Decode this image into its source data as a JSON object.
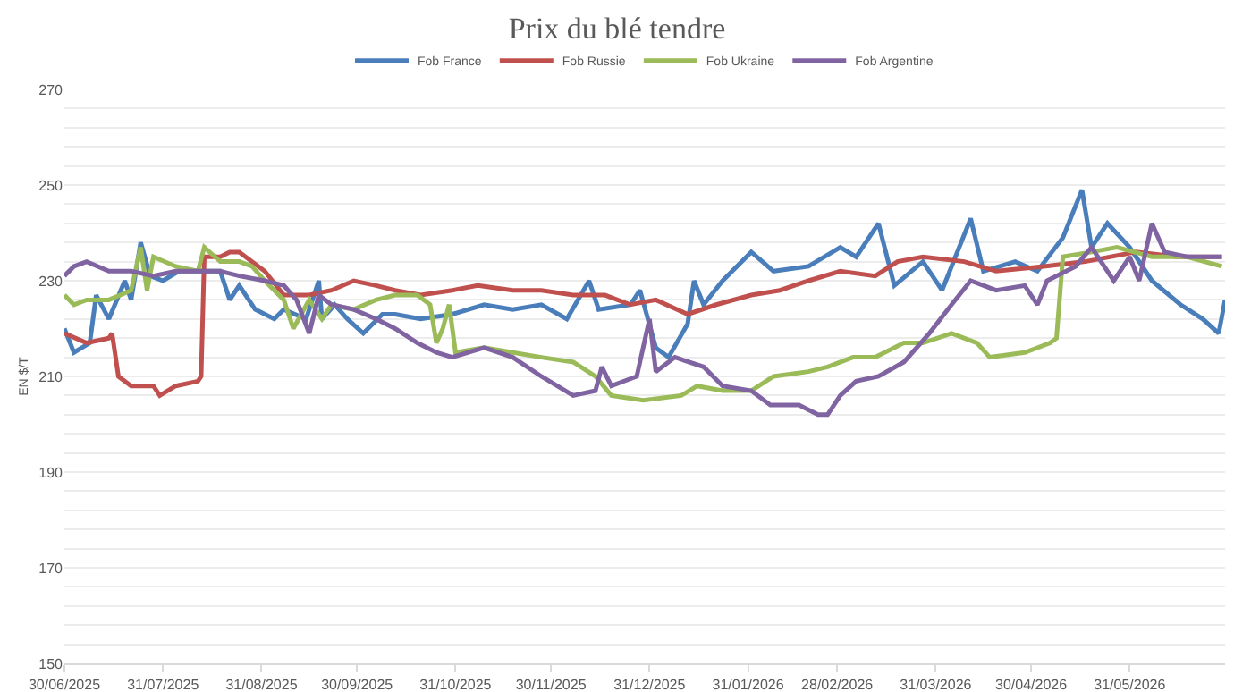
{
  "chart_data": {
    "type": "line",
    "title": "Prix du blé tendre",
    "ylabel": "EN $/T",
    "legend": "top",
    "grid": "y",
    "line_style": "solid",
    "xlim": [
      "2025-06-30",
      "2026-06-30"
    ],
    "xticks": [
      {
        "value": "2025-06-30",
        "label": "30/06/2025"
      },
      {
        "value": "2025-07-31",
        "label": "31/07/2025"
      },
      {
        "value": "2025-08-31",
        "label": "31/08/2025"
      },
      {
        "value": "2025-09-30",
        "label": "30/09/2025"
      },
      {
        "value": "2025-10-31",
        "label": "31/10/2025"
      },
      {
        "value": "2025-11-30",
        "label": "30/11/2025"
      },
      {
        "value": "2025-12-31",
        "label": "31/12/2025"
      },
      {
        "value": "2026-01-31",
        "label": "31/01/2026"
      },
      {
        "value": "2026-02-28",
        "label": "28/02/2026"
      },
      {
        "value": "2026-03-31",
        "label": "31/03/2026"
      },
      {
        "value": "2026-04-30",
        "label": "30/04/2026"
      },
      {
        "value": "2026-05-31",
        "label": "31/05/2026"
      }
    ],
    "ylim": [
      150,
      270
    ],
    "yticks": [
      150,
      {
        "value": 154,
        "label": null
      },
      {
        "value": 158,
        "label": null
      },
      {
        "value": 162,
        "label": null
      },
      {
        "value": 166,
        "label": null
      },
      170,
      {
        "value": 174,
        "label": null
      },
      {
        "value": 178,
        "label": null
      },
      {
        "value": 182,
        "label": null
      },
      {
        "value": 186,
        "label": null
      },
      190,
      {
        "value": 194,
        "label": null
      },
      {
        "value": 198,
        "label": null
      },
      {
        "value": 202,
        "label": null
      },
      {
        "value": 206,
        "label": null
      },
      210,
      {
        "value": 214,
        "label": null
      },
      {
        "value": 218,
        "label": null
      },
      {
        "value": 222,
        "label": null
      },
      {
        "value": 226,
        "label": null
      },
      230,
      {
        "value": 234,
        "label": null
      },
      {
        "value": 238,
        "label": null
      },
      {
        "value": 242,
        "label": null
      },
      {
        "value": 246,
        "label": null
      },
      250,
      {
        "value": 254,
        "label": null
      },
      {
        "value": 258,
        "label": null
      },
      {
        "value": 262,
        "label": null
      },
      {
        "value": 266,
        "label": null
      },
      270
    ],
    "series": [
      {
        "name": "Fob France",
        "color": "#4a7ebb",
        "x": [
          "2025-06-30",
          "2025-07-03",
          "2025-07-08",
          "2025-07-10",
          "2025-07-14",
          "2025-07-19",
          "2025-07-21",
          "2025-07-24",
          "2025-07-27",
          "2025-07-31",
          "2025-08-05",
          "2025-08-11",
          "2025-08-18",
          "2025-08-21",
          "2025-08-24",
          "2025-08-29",
          "2025-09-04",
          "2025-09-07",
          "2025-09-14",
          "2025-09-18",
          "2025-09-19",
          "2025-09-23",
          "2025-09-27",
          "2025-10-02",
          "2025-10-08",
          "2025-10-12",
          "2025-10-20",
          "2025-10-30",
          "2025-11-09",
          "2025-11-18",
          "2025-11-27",
          "2025-12-05",
          "2025-12-12",
          "2025-12-15",
          "2025-12-25",
          "2025-12-28",
          "2026-01-02",
          "2026-01-06",
          "2026-01-12",
          "2026-01-14",
          "2026-01-17",
          "2026-01-23",
          "2026-02-01",
          "2026-02-08",
          "2026-02-19",
          "2026-03-01",
          "2026-03-06",
          "2026-03-13",
          "2026-03-18",
          "2026-03-27",
          "2026-04-02",
          "2026-04-11",
          "2026-04-15",
          "2026-04-25",
          "2026-05-02",
          "2026-05-10",
          "2026-05-16",
          "2026-05-19",
          "2026-05-24",
          "2026-05-31",
          "2026-06-07",
          "2026-06-16",
          "2026-06-23",
          "2026-06-28",
          "2026-06-30"
        ],
        "values": [
          220,
          215,
          217,
          227,
          222,
          230,
          226,
          238,
          231,
          230,
          232,
          232,
          232,
          226,
          229,
          224,
          222,
          224,
          222,
          230,
          222,
          225,
          222,
          219,
          223,
          223,
          222,
          223,
          225,
          224,
          225,
          222,
          230,
          224,
          225,
          228,
          216,
          214,
          221,
          230,
          225,
          230,
          236,
          232,
          233,
          237,
          235,
          242,
          229,
          234,
          228,
          243,
          232,
          234,
          232,
          239,
          249,
          237,
          242,
          237,
          230,
          225,
          222,
          219,
          226
        ]
      },
      {
        "name": "Fob Russie",
        "color": "#c0504d",
        "x": [
          "2025-06-30",
          "2025-07-07",
          "2025-07-14",
          "2025-07-15",
          "2025-07-17",
          "2025-07-21",
          "2025-07-28",
          "2025-07-30",
          "2025-08-04",
          "2025-08-11",
          "2025-08-12",
          "2025-08-13",
          "2025-08-18",
          "2025-08-21",
          "2025-08-24",
          "2025-09-01",
          "2025-09-07",
          "2025-09-15",
          "2025-09-22",
          "2025-09-29",
          "2025-10-06",
          "2025-10-12",
          "2025-10-20",
          "2025-10-30",
          "2025-11-07",
          "2025-11-18",
          "2025-11-27",
          "2025-12-07",
          "2025-12-17",
          "2025-12-25",
          "2026-01-02",
          "2026-01-12",
          "2026-01-21",
          "2026-02-01",
          "2026-02-10",
          "2026-02-19",
          "2026-03-01",
          "2026-03-12",
          "2026-03-19",
          "2026-03-27",
          "2026-04-09",
          "2026-04-19",
          "2026-05-04",
          "2026-05-17",
          "2026-06-02",
          "2026-06-15",
          "2026-06-29"
        ],
        "values": [
          219,
          217,
          218,
          219,
          210,
          208,
          208,
          206,
          208,
          209,
          210,
          235,
          235,
          236,
          236,
          232,
          227,
          227,
          228,
          230,
          229,
          228,
          227,
          228,
          229,
          228,
          228,
          227,
          227,
          225,
          226,
          223,
          225,
          227,
          228,
          230,
          232,
          231,
          234,
          235,
          234,
          232,
          233,
          234,
          236,
          235,
          235
        ]
      },
      {
        "name": "Fob Ukraine",
        "color": "#9bbb59",
        "x": [
          "2025-06-30",
          "2025-07-03",
          "2025-07-07",
          "2025-07-14",
          "2025-07-21",
          "2025-07-24",
          "2025-07-26",
          "2025-07-28",
          "2025-08-04",
          "2025-08-11",
          "2025-08-13",
          "2025-08-18",
          "2025-08-24",
          "2025-08-28",
          "2025-09-01",
          "2025-09-07",
          "2025-09-10",
          "2025-09-15",
          "2025-09-19",
          "2025-09-22",
          "2025-09-29",
          "2025-10-06",
          "2025-10-12",
          "2025-10-19",
          "2025-10-23",
          "2025-10-25",
          "2025-10-27",
          "2025-10-29",
          "2025-10-31",
          "2025-11-09",
          "2025-11-18",
          "2025-11-27",
          "2025-12-07",
          "2025-12-14",
          "2025-12-19",
          "2025-12-29",
          "2026-01-10",
          "2026-01-15",
          "2026-01-23",
          "2026-02-01",
          "2026-02-08",
          "2026-02-19",
          "2026-02-25",
          "2026-03-05",
          "2026-03-12",
          "2026-03-21",
          "2026-03-27",
          "2026-04-05",
          "2026-04-13",
          "2026-04-17",
          "2026-04-28",
          "2026-05-06",
          "2026-05-08",
          "2026-05-10",
          "2026-05-19",
          "2026-05-27",
          "2026-06-07",
          "2026-06-18",
          "2026-06-29"
        ],
        "values": [
          227,
          225,
          226,
          226,
          228,
          237,
          228,
          235,
          233,
          232,
          237,
          234,
          234,
          233,
          230,
          226,
          220,
          226,
          222,
          225,
          224,
          226,
          227,
          227,
          225,
          217,
          220,
          225,
          215,
          216,
          215,
          214,
          213,
          210,
          206,
          205,
          206,
          208,
          207,
          207,
          210,
          211,
          212,
          214,
          214,
          217,
          217,
          219,
          217,
          214,
          215,
          217,
          218,
          235,
          236,
          237,
          235,
          235,
          233
        ]
      },
      {
        "name": "Fob Argentine",
        "color": "#8064a2",
        "x": [
          "2025-06-30",
          "2025-07-03",
          "2025-07-07",
          "2025-07-14",
          "2025-07-21",
          "2025-07-28",
          "2025-08-04",
          "2025-08-11",
          "2025-08-18",
          "2025-08-24",
          "2025-09-01",
          "2025-09-07",
          "2025-09-11",
          "2025-09-15",
          "2025-09-18",
          "2025-09-22",
          "2025-09-29",
          "2025-10-06",
          "2025-10-12",
          "2025-10-19",
          "2025-10-25",
          "2025-10-30",
          "2025-11-09",
          "2025-11-18",
          "2025-11-27",
          "2025-12-07",
          "2025-12-14",
          "2025-12-16",
          "2025-12-19",
          "2025-12-27",
          "2025-12-31",
          "2026-01-02",
          "2026-01-08",
          "2026-01-17",
          "2026-01-23",
          "2026-02-01",
          "2026-02-07",
          "2026-02-16",
          "2026-02-22",
          "2026-02-25",
          "2026-03-01",
          "2026-03-06",
          "2026-03-13",
          "2026-03-21",
          "2026-03-29",
          "2026-04-05",
          "2026-04-11",
          "2026-04-19",
          "2026-04-28",
          "2026-05-02",
          "2026-05-05",
          "2026-05-14",
          "2026-05-19",
          "2026-05-26",
          "2026-05-31",
          "2026-06-03",
          "2026-06-07",
          "2026-06-11",
          "2026-06-18",
          "2026-06-29"
        ],
        "values": [
          231,
          233,
          234,
          232,
          232,
          231,
          232,
          232,
          232,
          231,
          230,
          229,
          226,
          219,
          227,
          225,
          224,
          222,
          220,
          217,
          215,
          214,
          216,
          214,
          210,
          206,
          207,
          212,
          208,
          210,
          222,
          211,
          214,
          212,
          208,
          207,
          204,
          204,
          202,
          202,
          206,
          209,
          210,
          213,
          219,
          225,
          230,
          228,
          229,
          225,
          230,
          233,
          237,
          230,
          235,
          230,
          242,
          236,
          235,
          235
        ]
      }
    ]
  }
}
